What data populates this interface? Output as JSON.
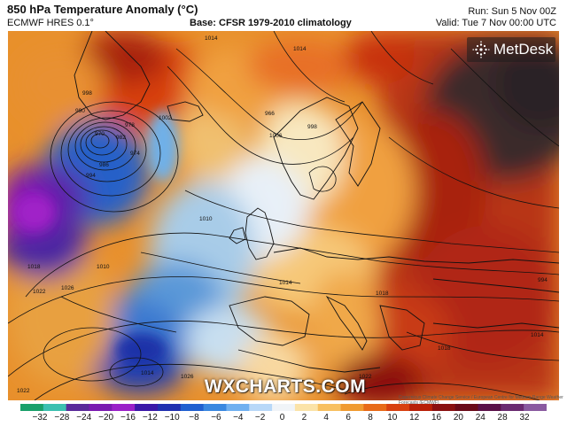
{
  "header": {
    "title": "850 hPa Temperature Anomaly (°C)",
    "model": "ECMWF HRES 0.1°",
    "base": "Base: CFSR 1979-2010 climatology",
    "run": "Run: Sun 5 Nov 00Z",
    "valid": "Valid: Tue 7 Nov 00:00 UTC"
  },
  "logo": {
    "text": "MetDesk",
    "icon": "metdesk-burst-icon"
  },
  "watermark": "WXCHARTS.COM",
  "credit": "Copernicus Climate Change Service / European Centre for Medium-Range Weather Forecasts (ECMWF)",
  "colorbar": {
    "ticks": [
      "−32",
      "−28",
      "−24",
      "−20",
      "−16",
      "−12",
      "−10",
      "−8",
      "−6",
      "−4",
      "−2",
      "0",
      "2",
      "4",
      "6",
      "8",
      "10",
      "12",
      "16",
      "20",
      "24",
      "28",
      "32"
    ],
    "colors": [
      "#1aa06a",
      "#3cc0b0",
      "#5a2a9a",
      "#7a1ab0",
      "#9a20c8",
      "#3a18a8",
      "#2030b0",
      "#2060d0",
      "#3a88e0",
      "#70b0f0",
      "#b8d8f8",
      "#f0f4f8",
      "#fbe3a8",
      "#f8c060",
      "#f09a30",
      "#e86a18",
      "#d84010",
      "#b82008",
      "#8a1010",
      "#6a0a18",
      "#5a1048",
      "#6a2a70",
      "#8a5aa0"
    ]
  },
  "isobar_labels": [
    "1014",
    "1014",
    "1018",
    "1022",
    "1026",
    "1022",
    "1010",
    "1014",
    "1002",
    "998",
    "994",
    "990",
    "986",
    "982",
    "978",
    "974",
    "970",
    "966",
    "1006",
    "998",
    "994",
    "1014",
    "1018",
    "1010",
    "1018",
    "1014",
    "1026",
    "1022"
  ]
}
